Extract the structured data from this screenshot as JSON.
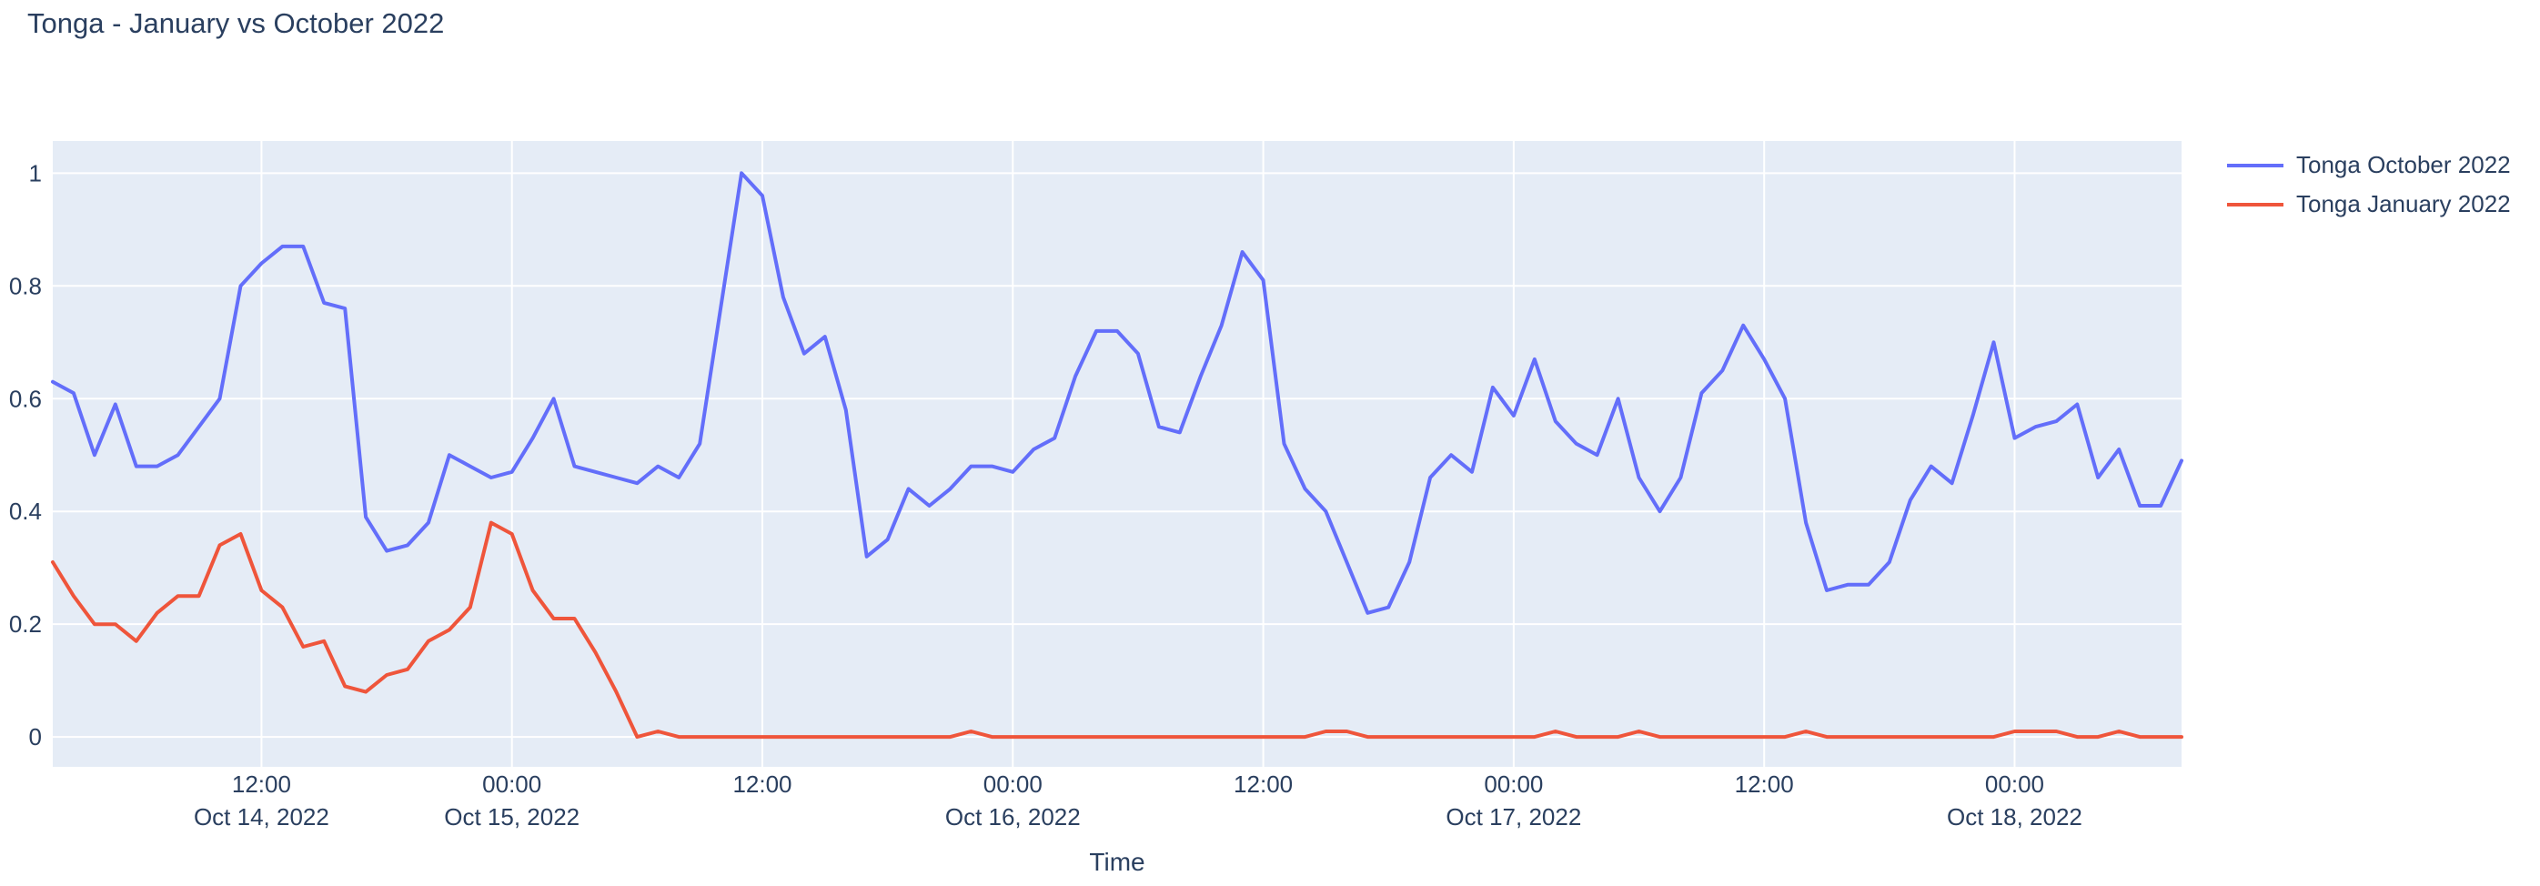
{
  "chart_data": {
    "type": "line",
    "title": "Tonga - January vs October 2022",
    "xlabel": "Time",
    "ylabel": "",
    "x_unit": "hours since 2022-10-14 02:00 (1 point per hour, ending 2022-10-18 08:00)",
    "ylim": [
      -0.053,
      1.057
    ],
    "grid": true,
    "legend_position": "right-top",
    "plot_bg_color": "#E5ECF6",
    "grid_color": "#FFFFFF",
    "text_color": "#2A3F5F",
    "y_ticks": [
      "0",
      "0.2",
      "0.4",
      "0.6",
      "0.8",
      "1"
    ],
    "y_tick_values": [
      0,
      0.2,
      0.4,
      0.6,
      0.8,
      1
    ],
    "x_ticks": [
      {
        "hour": 10,
        "time": "12:00",
        "date": "Oct 14, 2022"
      },
      {
        "hour": 22,
        "time": "00:00",
        "date": "Oct 15, 2022"
      },
      {
        "hour": 34,
        "time": "12:00",
        "date": ""
      },
      {
        "hour": 46,
        "time": "00:00",
        "date": "Oct 16, 2022"
      },
      {
        "hour": 58,
        "time": "12:00",
        "date": ""
      },
      {
        "hour": 70,
        "time": "00:00",
        "date": "Oct 17, 2022"
      },
      {
        "hour": 82,
        "time": "12:00",
        "date": ""
      },
      {
        "hour": 94,
        "time": "00:00",
        "date": "Oct 18, 2022"
      }
    ],
    "series": [
      {
        "name": "Tonga October 2022",
        "color": "#636EFA",
        "values": [
          0.63,
          0.61,
          0.5,
          0.59,
          0.48,
          0.48,
          0.5,
          0.55,
          0.6,
          0.8,
          0.84,
          0.87,
          0.87,
          0.77,
          0.76,
          0.39,
          0.33,
          0.34,
          0.38,
          0.5,
          0.48,
          0.46,
          0.47,
          0.53,
          0.6,
          0.48,
          0.47,
          0.46,
          0.45,
          0.48,
          0.46,
          0.52,
          0.76,
          1.0,
          0.96,
          0.78,
          0.68,
          0.71,
          0.58,
          0.32,
          0.35,
          0.44,
          0.41,
          0.44,
          0.48,
          0.48,
          0.47,
          0.51,
          0.53,
          0.64,
          0.72,
          0.72,
          0.68,
          0.55,
          0.54,
          0.64,
          0.73,
          0.86,
          0.81,
          0.52,
          0.44,
          0.4,
          0.31,
          0.22,
          0.23,
          0.31,
          0.46,
          0.5,
          0.47,
          0.62,
          0.57,
          0.67,
          0.56,
          0.52,
          0.5,
          0.6,
          0.46,
          0.4,
          0.46,
          0.61,
          0.65,
          0.73,
          0.67,
          0.6,
          0.38,
          0.26,
          0.27,
          0.27,
          0.31,
          0.42,
          0.48,
          0.45,
          0.57,
          0.7,
          0.53,
          0.55,
          0.56,
          0.59,
          0.46,
          0.51,
          0.41,
          0.41,
          0.49
        ]
      },
      {
        "name": "Tonga January 2022",
        "color": "#EF553B",
        "values": [
          0.31,
          0.25,
          0.2,
          0.2,
          0.17,
          0.22,
          0.25,
          0.25,
          0.34,
          0.36,
          0.26,
          0.23,
          0.16,
          0.17,
          0.09,
          0.08,
          0.11,
          0.12,
          0.17,
          0.19,
          0.23,
          0.38,
          0.36,
          0.26,
          0.21,
          0.21,
          0.15,
          0.08,
          0.0,
          0.01,
          0.0,
          0.0,
          0.0,
          0.0,
          0.0,
          0.0,
          0.0,
          0.0,
          0.0,
          0.0,
          0.0,
          0.0,
          0.0,
          0.0,
          0.01,
          0.0,
          0.0,
          0.0,
          0.0,
          0.0,
          0.0,
          0.0,
          0.0,
          0.0,
          0.0,
          0.0,
          0.0,
          0.0,
          0.0,
          0.0,
          0.0,
          0.01,
          0.01,
          0.0,
          0.0,
          0.0,
          0.0,
          0.0,
          0.0,
          0.0,
          0.0,
          0.0,
          0.01,
          0.0,
          0.0,
          0.0,
          0.01,
          0.0,
          0.0,
          0.0,
          0.0,
          0.0,
          0.0,
          0.0,
          0.01,
          0.0,
          0.0,
          0.0,
          0.0,
          0.0,
          0.0,
          0.0,
          0.0,
          0.0,
          0.01,
          0.01,
          0.01,
          0.0,
          0.0,
          0.01,
          0.0,
          0.0,
          0.0
        ]
      }
    ]
  }
}
